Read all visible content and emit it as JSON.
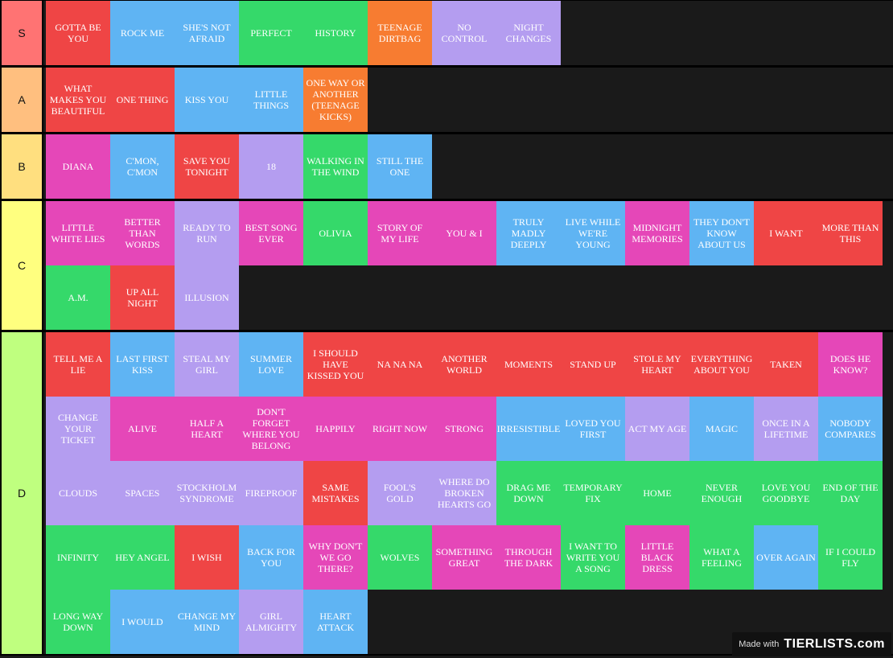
{
  "colors": {
    "red": "#ef4545",
    "blue": "#5fb4f3",
    "green": "#35d96a",
    "orange": "#f77c31",
    "purple": "#b49df0",
    "pink": "#e547b8",
    "tier_S": "#ff7373",
    "tier_A": "#ffbf7f",
    "tier_B": "#ffdf7f",
    "tier_C": "#ffff7f",
    "tier_D": "#bfff7f"
  },
  "tiers": [
    {
      "label": "S",
      "items": [
        {
          "text": "GOTTA BE YOU",
          "color": "red"
        },
        {
          "text": "ROCK ME",
          "color": "blue"
        },
        {
          "text": "SHE'S NOT AFRAID",
          "color": "blue"
        },
        {
          "text": "PERFECT",
          "color": "green"
        },
        {
          "text": "HISTORY",
          "color": "green"
        },
        {
          "text": "TEENAGE DIRTBAG",
          "color": "orange"
        },
        {
          "text": "NO CONTROL",
          "color": "purple"
        },
        {
          "text": "NIGHT CHANGES",
          "color": "purple"
        }
      ]
    },
    {
      "label": "A",
      "items": [
        {
          "text": "WHAT MAKES YOU BEAUTIFUL",
          "color": "red"
        },
        {
          "text": "ONE THING",
          "color": "red"
        },
        {
          "text": "KISS YOU",
          "color": "blue"
        },
        {
          "text": "LITTLE THINGS",
          "color": "blue"
        },
        {
          "text": "ONE WAY OR ANOTHER (TEENAGE KICKS)",
          "color": "orange"
        }
      ]
    },
    {
      "label": "B",
      "items": [
        {
          "text": "DIANA",
          "color": "pink"
        },
        {
          "text": "C'MON, C'MON",
          "color": "blue"
        },
        {
          "text": "SAVE YOU TONIGHT",
          "color": "red"
        },
        {
          "text": "18",
          "color": "purple"
        },
        {
          "text": "WALKING IN THE WIND",
          "color": "green"
        },
        {
          "text": "STILL THE ONE",
          "color": "blue"
        }
      ]
    },
    {
      "label": "C",
      "items": [
        {
          "text": "LITTLE WHITE LIES",
          "color": "pink"
        },
        {
          "text": "BETTER THAN WORDS",
          "color": "pink"
        },
        {
          "text": "READY TO RUN",
          "color": "purple"
        },
        {
          "text": "BEST SONG EVER",
          "color": "pink"
        },
        {
          "text": "OLIVIA",
          "color": "green"
        },
        {
          "text": "STORY OF MY LIFE",
          "color": "pink"
        },
        {
          "text": "YOU & I",
          "color": "pink"
        },
        {
          "text": "TRULY MADLY DEEPLY",
          "color": "blue"
        },
        {
          "text": "LIVE WHILE WE'RE YOUNG",
          "color": "blue"
        },
        {
          "text": "MIDNIGHT MEMORIES",
          "color": "pink"
        },
        {
          "text": "THEY DON'T KNOW ABOUT US",
          "color": "blue"
        },
        {
          "text": "I WANT",
          "color": "red"
        },
        {
          "text": "MORE THAN THIS",
          "color": "red"
        },
        {
          "text": "A.M.",
          "color": "green"
        },
        {
          "text": "UP ALL NIGHT",
          "color": "red"
        },
        {
          "text": "ILLUSION",
          "color": "purple"
        }
      ]
    },
    {
      "label": "D",
      "items": [
        {
          "text": "TELL ME A LIE",
          "color": "red"
        },
        {
          "text": "LAST FIRST KISS",
          "color": "blue"
        },
        {
          "text": "STEAL MY GIRL",
          "color": "purple"
        },
        {
          "text": "SUMMER LOVE",
          "color": "blue"
        },
        {
          "text": "I SHOULD HAVE KISSED YOU",
          "color": "red"
        },
        {
          "text": "NA NA NA",
          "color": "red"
        },
        {
          "text": "ANOTHER WORLD",
          "color": "red"
        },
        {
          "text": "MOMENTS",
          "color": "red"
        },
        {
          "text": "STAND UP",
          "color": "red"
        },
        {
          "text": "STOLE MY HEART",
          "color": "red"
        },
        {
          "text": "EVERYTHING ABOUT YOU",
          "color": "red"
        },
        {
          "text": "TAKEN",
          "color": "red"
        },
        {
          "text": "DOES HE KNOW?",
          "color": "pink"
        },
        {
          "text": "CHANGE YOUR TICKET",
          "color": "purple"
        },
        {
          "text": "ALIVE",
          "color": "pink"
        },
        {
          "text": "HALF A HEART",
          "color": "pink"
        },
        {
          "text": "DON'T FORGET WHERE YOU BELONG",
          "color": "pink"
        },
        {
          "text": "HAPPILY",
          "color": "pink"
        },
        {
          "text": "RIGHT NOW",
          "color": "pink"
        },
        {
          "text": "STRONG",
          "color": "pink"
        },
        {
          "text": "IRRESISTIBLE",
          "color": "blue"
        },
        {
          "text": "LOVED YOU FIRST",
          "color": "blue"
        },
        {
          "text": "ACT MY AGE",
          "color": "purple"
        },
        {
          "text": "MAGIC",
          "color": "blue"
        },
        {
          "text": "ONCE IN A LIFETIME",
          "color": "purple"
        },
        {
          "text": "NOBODY COMPARES",
          "color": "blue"
        },
        {
          "text": "CLOUDS",
          "color": "purple"
        },
        {
          "text": "SPACES",
          "color": "purple"
        },
        {
          "text": "STOCKHOLM SYNDROME",
          "color": "purple"
        },
        {
          "text": "FIREPROOF",
          "color": "purple"
        },
        {
          "text": "SAME MISTAKES",
          "color": "red"
        },
        {
          "text": "FOOL'S GOLD",
          "color": "purple"
        },
        {
          "text": "WHERE DO BROKEN HEARTS GO",
          "color": "purple"
        },
        {
          "text": "DRAG ME DOWN",
          "color": "green"
        },
        {
          "text": "TEMPORARY FIX",
          "color": "green"
        },
        {
          "text": "HOME",
          "color": "green"
        },
        {
          "text": "NEVER ENOUGH",
          "color": "green"
        },
        {
          "text": "LOVE YOU GOODBYE",
          "color": "green"
        },
        {
          "text": "END OF THE DAY",
          "color": "green"
        },
        {
          "text": "INFINITY",
          "color": "green"
        },
        {
          "text": "HEY ANGEL",
          "color": "green"
        },
        {
          "text": "I WISH",
          "color": "red"
        },
        {
          "text": "BACK FOR YOU",
          "color": "blue"
        },
        {
          "text": "WHY DON'T WE GO THERE?",
          "color": "pink"
        },
        {
          "text": "WOLVES",
          "color": "green"
        },
        {
          "text": "SOMETHING GREAT",
          "color": "pink"
        },
        {
          "text": "THROUGH THE DARK",
          "color": "pink"
        },
        {
          "text": "I WANT TO WRITE YOU A SONG",
          "color": "green"
        },
        {
          "text": "LITTLE BLACK DRESS",
          "color": "pink"
        },
        {
          "text": "WHAT A FEELING",
          "color": "green"
        },
        {
          "text": "OVER AGAIN",
          "color": "blue"
        },
        {
          "text": "IF I COULD FLY",
          "color": "green"
        },
        {
          "text": "LONG WAY DOWN",
          "color": "green"
        },
        {
          "text": "I WOULD",
          "color": "blue"
        },
        {
          "text": "CHANGE MY MIND",
          "color": "blue"
        },
        {
          "text": "GIRL ALMIGHTY",
          "color": "purple"
        },
        {
          "text": "HEART ATTACK",
          "color": "blue"
        }
      ]
    }
  ],
  "watermark": {
    "made": "Made with",
    "brand": "TIERLISTS.com"
  }
}
